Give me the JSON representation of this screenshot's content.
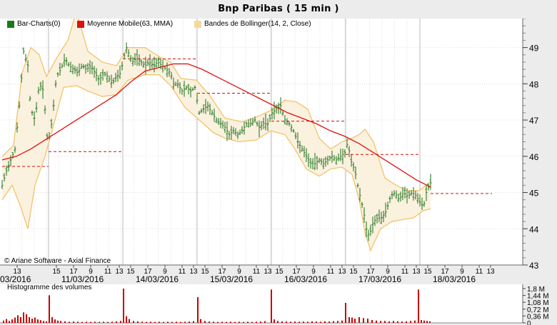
{
  "window": {
    "title": "Bnp Paribas  ( 15 min )"
  },
  "legend": [
    {
      "label": "Bar-Charts(0)",
      "color": "#1a7a1a"
    },
    {
      "label": "Moyenne Mobile(63, MMA)",
      "color": "#e01010"
    },
    {
      "label": "Bandes de Bollinger(14, 2, Close)",
      "color": "#f0c060"
    }
  ],
  "copyright": "© Ariane Software - Axial Finance",
  "volume_panel": {
    "title": "Histogramme des volumes",
    "y_ticks": [
      "1,8 M",
      "1,44 M",
      "1,08 M",
      "0,72 M",
      "0,36 M",
      "0"
    ],
    "bar_color": "#cc0000"
  },
  "chart_data": {
    "type": "line",
    "y_ticks": [
      43,
      44,
      45,
      46,
      47,
      48,
      49
    ],
    "ylim": [
      43,
      49.8
    ],
    "x_hour_labels": [
      "13",
      "15",
      "17",
      "9",
      "11",
      "13",
      "15",
      "17",
      "9",
      "11",
      "13",
      "15",
      "17",
      "9",
      "11",
      "13",
      "15",
      "17",
      "9",
      "11",
      "13",
      "15",
      "17",
      "9",
      "11",
      "13",
      "15",
      "17",
      "9",
      "11",
      "13",
      "15",
      "17"
    ],
    "dates": [
      "03/2016",
      "11/03/2016",
      "14/03/2016",
      "15/03/2016",
      "16/03/2016",
      "17/03/2016",
      "18/03/2016"
    ],
    "price_path": [
      [
        0,
        45.2
      ],
      [
        6,
        45.6
      ],
      [
        12,
        45.9
      ],
      [
        18,
        46.2
      ],
      [
        24,
        47.4
      ],
      [
        30,
        48.9
      ],
      [
        36,
        48.5
      ],
      [
        40,
        47.3
      ],
      [
        46,
        47.0
      ],
      [
        52,
        48.0
      ],
      [
        58,
        47.8
      ],
      [
        64,
        46.3
      ],
      [
        70,
        47.0
      ],
      [
        76,
        48.2
      ],
      [
        82,
        48.4
      ],
      [
        88,
        48.7
      ],
      [
        94,
        48.5
      ],
      [
        100,
        48.4
      ],
      [
        106,
        48.3
      ],
      [
        112,
        48.5
      ],
      [
        118,
        48.4
      ],
      [
        124,
        48.5
      ],
      [
        130,
        48.3
      ],
      [
        136,
        48.1
      ],
      [
        142,
        48.3
      ],
      [
        148,
        48.2
      ],
      [
        154,
        48.0
      ],
      [
        160,
        48.2
      ],
      [
        166,
        48.3
      ],
      [
        170,
        48.7
      ],
      [
        174,
        49.0
      ],
      [
        178,
        48.8
      ],
      [
        182,
        48.6
      ],
      [
        188,
        48.7
      ],
      [
        194,
        48.6
      ],
      [
        200,
        48.5
      ],
      [
        206,
        48.6
      ],
      [
        212,
        48.5
      ],
      [
        218,
        48.6
      ],
      [
        224,
        48.5
      ],
      [
        230,
        48.4
      ],
      [
        236,
        48.3
      ],
      [
        240,
        48.0
      ],
      [
        246,
        48.0
      ],
      [
        252,
        47.8
      ],
      [
        258,
        47.9
      ],
      [
        264,
        47.8
      ],
      [
        270,
        47.9
      ],
      [
        276,
        47.2
      ],
      [
        282,
        47.3
      ],
      [
        288,
        47.4
      ],
      [
        294,
        47.2
      ],
      [
        300,
        47.0
      ],
      [
        306,
        46.9
      ],
      [
        312,
        46.8
      ],
      [
        318,
        46.6
      ],
      [
        324,
        46.7
      ],
      [
        330,
        46.6
      ],
      [
        336,
        46.7
      ],
      [
        342,
        46.9
      ],
      [
        348,
        46.9
      ],
      [
        354,
        47.0
      ],
      [
        360,
        46.8
      ],
      [
        366,
        46.9
      ],
      [
        372,
        46.9
      ],
      [
        378,
        47.2
      ],
      [
        384,
        47.3
      ],
      [
        390,
        47.4
      ],
      [
        396,
        47.0
      ],
      [
        402,
        46.9
      ],
      [
        408,
        46.7
      ],
      [
        414,
        46.4
      ],
      [
        420,
        46.2
      ],
      [
        426,
        46.0
      ],
      [
        432,
        45.8
      ],
      [
        438,
        45.8
      ],
      [
        444,
        45.9
      ],
      [
        450,
        45.8
      ],
      [
        456,
        45.9
      ],
      [
        462,
        46.0
      ],
      [
        468,
        45.9
      ],
      [
        474,
        46.0
      ],
      [
        480,
        46.1
      ],
      [
        484,
        46.4
      ],
      [
        488,
        45.9
      ],
      [
        494,
        45.6
      ],
      [
        500,
        45.0
      ],
      [
        506,
        44.5
      ],
      [
        510,
        44.0
      ],
      [
        514,
        43.8
      ],
      [
        520,
        44.2
      ],
      [
        526,
        44.3
      ],
      [
        532,
        44.3
      ],
      [
        538,
        44.5
      ],
      [
        544,
        44.9
      ],
      [
        550,
        45.0
      ],
      [
        556,
        44.8
      ],
      [
        562,
        45.0
      ],
      [
        568,
        44.9
      ],
      [
        574,
        45.0
      ],
      [
        580,
        44.9
      ],
      [
        586,
        44.7
      ],
      [
        590,
        44.6
      ],
      [
        594,
        45.0
      ],
      [
        598,
        45.2
      ],
      [
        601,
        45.3
      ]
    ],
    "moving_average": [
      [
        0,
        45.9
      ],
      [
        20,
        46.0
      ],
      [
        40,
        46.2
      ],
      [
        60,
        46.45
      ],
      [
        80,
        46.7
      ],
      [
        100,
        46.95
      ],
      [
        120,
        47.2
      ],
      [
        140,
        47.45
      ],
      [
        160,
        47.7
      ],
      [
        180,
        48.05
      ],
      [
        200,
        48.35
      ],
      [
        220,
        48.45
      ],
      [
        240,
        48.55
      ],
      [
        260,
        48.55
      ],
      [
        280,
        48.4
      ],
      [
        300,
        48.2
      ],
      [
        320,
        48.0
      ],
      [
        340,
        47.8
      ],
      [
        360,
        47.6
      ],
      [
        380,
        47.4
      ],
      [
        400,
        47.2
      ],
      [
        420,
        47.05
      ],
      [
        440,
        46.9
      ],
      [
        460,
        46.7
      ],
      [
        480,
        46.55
      ],
      [
        500,
        46.35
      ],
      [
        520,
        46.1
      ],
      [
        540,
        45.85
      ],
      [
        560,
        45.6
      ],
      [
        580,
        45.35
      ],
      [
        600,
        45.15
      ]
    ],
    "bollinger_upper": [
      [
        0,
        46.0
      ],
      [
        16,
        46.3
      ],
      [
        28,
        48.3
      ],
      [
        40,
        49.0
      ],
      [
        52,
        48.8
      ],
      [
        62,
        48.2
      ],
      [
        76,
        48.7
      ],
      [
        92,
        49.2
      ],
      [
        104,
        50.0
      ],
      [
        120,
        48.9
      ],
      [
        140,
        48.6
      ],
      [
        160,
        48.5
      ],
      [
        176,
        49.0
      ],
      [
        200,
        49.0
      ],
      [
        220,
        48.75
      ],
      [
        236,
        48.6
      ],
      [
        250,
        48.15
      ],
      [
        272,
        48.1
      ],
      [
        290,
        47.7
      ],
      [
        312,
        47.05
      ],
      [
        336,
        46.95
      ],
      [
        358,
        47.1
      ],
      [
        380,
        47.3
      ],
      [
        396,
        47.55
      ],
      [
        412,
        47.5
      ],
      [
        428,
        47.3
      ],
      [
        444,
        46.5
      ],
      [
        460,
        46.2
      ],
      [
        476,
        46.4
      ],
      [
        490,
        46.5
      ],
      [
        500,
        46.6
      ],
      [
        508,
        46.75
      ],
      [
        520,
        46.4
      ],
      [
        536,
        45.4
      ],
      [
        552,
        45.2
      ],
      [
        568,
        45.05
      ],
      [
        584,
        45.05
      ],
      [
        600,
        45.3
      ]
    ],
    "bollinger_lower": [
      [
        0,
        44.8
      ],
      [
        14,
        45.2
      ],
      [
        26,
        44.6
      ],
      [
        36,
        44.0
      ],
      [
        46,
        45.2
      ],
      [
        60,
        46.0
      ],
      [
        74,
        47.0
      ],
      [
        86,
        47.9
      ],
      [
        104,
        47.95
      ],
      [
        120,
        47.8
      ],
      [
        140,
        47.65
      ],
      [
        160,
        47.7
      ],
      [
        176,
        48.1
      ],
      [
        200,
        48.25
      ],
      [
        220,
        48.25
      ],
      [
        236,
        47.95
      ],
      [
        256,
        47.35
      ],
      [
        276,
        47.0
      ],
      [
        296,
        46.65
      ],
      [
        312,
        46.5
      ],
      [
        332,
        46.4
      ],
      [
        356,
        46.45
      ],
      [
        376,
        46.7
      ],
      [
        396,
        46.6
      ],
      [
        410,
        46.2
      ],
      [
        426,
        45.65
      ],
      [
        444,
        45.45
      ],
      [
        460,
        45.65
      ],
      [
        476,
        45.7
      ],
      [
        490,
        45.5
      ],
      [
        500,
        44.8
      ],
      [
        508,
        43.9
      ],
      [
        516,
        43.4
      ],
      [
        530,
        44.0
      ],
      [
        546,
        44.2
      ],
      [
        560,
        44.25
      ],
      [
        576,
        44.3
      ],
      [
        590,
        44.5
      ],
      [
        600,
        44.55
      ]
    ],
    "daily_reference_levels": [
      {
        "x0": 0,
        "x1": 65,
        "y": 45.72
      },
      {
        "x0": 65,
        "x1": 169,
        "y": 46.13
      },
      {
        "x0": 169,
        "x1": 273,
        "y": 48.69
      },
      {
        "x0": 273,
        "x1": 377,
        "y": 47.74
      },
      {
        "x0": 377,
        "x1": 481,
        "y": 46.97
      },
      {
        "x0": 481,
        "x1": 585,
        "y": 46.05
      },
      {
        "x0": 600,
        "x1": 686,
        "y": 44.97
      }
    ],
    "volumes": [
      [
        2,
        0.12
      ],
      [
        6,
        0.2
      ],
      [
        10,
        0.1
      ],
      [
        14,
        0.18
      ],
      [
        18,
        0.28
      ],
      [
        22,
        0.4
      ],
      [
        26,
        0.3
      ],
      [
        30,
        0.55
      ],
      [
        34,
        0.45
      ],
      [
        38,
        0.3
      ],
      [
        42,
        0.22
      ],
      [
        46,
        0.28
      ],
      [
        50,
        0.18
      ],
      [
        54,
        0.14
      ],
      [
        58,
        0.1
      ],
      [
        62,
        0.08
      ],
      [
        66,
        1.45
      ],
      [
        70,
        0.3
      ],
      [
        74,
        0.18
      ],
      [
        78,
        0.12
      ],
      [
        82,
        0.1
      ],
      [
        88,
        0.08
      ],
      [
        94,
        0.06
      ],
      [
        100,
        0.07
      ],
      [
        106,
        0.06
      ],
      [
        112,
        0.05
      ],
      [
        118,
        0.06
      ],
      [
        124,
        0.05
      ],
      [
        130,
        0.06
      ],
      [
        136,
        0.05
      ],
      [
        142,
        0.06
      ],
      [
        148,
        0.05
      ],
      [
        154,
        0.06
      ],
      [
        160,
        0.08
      ],
      [
        166,
        0.1
      ],
      [
        170,
        1.8
      ],
      [
        174,
        0.35
      ],
      [
        178,
        0.2
      ],
      [
        184,
        0.1
      ],
      [
        190,
        0.08
      ],
      [
        196,
        0.06
      ],
      [
        202,
        0.05
      ],
      [
        208,
        0.06
      ],
      [
        214,
        0.05
      ],
      [
        220,
        0.06
      ],
      [
        226,
        0.05
      ],
      [
        232,
        0.06
      ],
      [
        238,
        0.05
      ],
      [
        244,
        0.06
      ],
      [
        250,
        0.05
      ],
      [
        256,
        0.06
      ],
      [
        262,
        0.07
      ],
      [
        268,
        0.09
      ],
      [
        274,
        1.35
      ],
      [
        278,
        0.2
      ],
      [
        284,
        0.1
      ],
      [
        290,
        0.07
      ],
      [
        296,
        0.06
      ],
      [
        302,
        0.05
      ],
      [
        308,
        0.06
      ],
      [
        314,
        0.05
      ],
      [
        320,
        0.06
      ],
      [
        326,
        0.05
      ],
      [
        332,
        0.06
      ],
      [
        338,
        0.05
      ],
      [
        344,
        0.06
      ],
      [
        350,
        0.05
      ],
      [
        356,
        0.06
      ],
      [
        362,
        0.07
      ],
      [
        368,
        0.09
      ],
      [
        377,
        1.75
      ],
      [
        381,
        0.18
      ],
      [
        386,
        0.1
      ],
      [
        392,
        0.08
      ],
      [
        398,
        0.07
      ],
      [
        404,
        0.06
      ],
      [
        410,
        0.07
      ],
      [
        416,
        0.06
      ],
      [
        422,
        0.07
      ],
      [
        428,
        0.06
      ],
      [
        434,
        0.08
      ],
      [
        440,
        0.07
      ],
      [
        446,
        0.06
      ],
      [
        452,
        0.08
      ],
      [
        458,
        0.07
      ],
      [
        464,
        0.09
      ],
      [
        470,
        0.1
      ],
      [
        476,
        0.12
      ],
      [
        481,
        1.05
      ],
      [
        486,
        0.3
      ],
      [
        490,
        0.28
      ],
      [
        494,
        0.22
      ],
      [
        500,
        0.3
      ],
      [
        506,
        0.25
      ],
      [
        512,
        0.22
      ],
      [
        518,
        0.15
      ],
      [
        524,
        0.12
      ],
      [
        530,
        0.1
      ],
      [
        536,
        0.1
      ],
      [
        542,
        0.08
      ],
      [
        548,
        0.1
      ],
      [
        554,
        0.08
      ],
      [
        560,
        0.07
      ],
      [
        566,
        0.08
      ],
      [
        572,
        0.1
      ],
      [
        578,
        0.12
      ],
      [
        583,
        1.75
      ],
      [
        587,
        0.15
      ],
      [
        591,
        0.12
      ],
      [
        595,
        0.1
      ],
      [
        599,
        0.08
      ]
    ]
  }
}
